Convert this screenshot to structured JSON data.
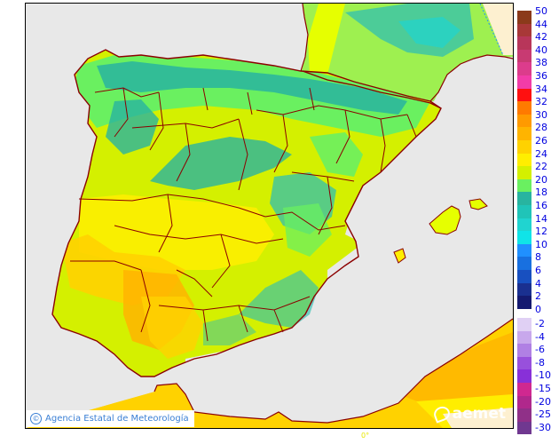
{
  "map": {
    "region": "Iberian Peninsula and Balearic Islands",
    "background_sea_color": "#e8e8e8",
    "border_color": "#8b0000",
    "credit": "Agencia Estatal de Meteorología",
    "credit_symbol": "©",
    "logo_text": "aemet",
    "longitude_label": "0°"
  },
  "legend": {
    "positive": [
      {
        "label": "50",
        "color": "#8b3a1a"
      },
      {
        "label": "44",
        "color": "#a83838"
      },
      {
        "label": "42",
        "color": "#b8365a"
      },
      {
        "label": "40",
        "color": "#c83a72"
      },
      {
        "label": "38",
        "color": "#dc3c8c"
      },
      {
        "label": "36",
        "color": "#f23ca8"
      },
      {
        "label": "34",
        "color": "#ff1010"
      },
      {
        "label": "32",
        "color": "#ff7a00"
      },
      {
        "label": "30",
        "color": "#ff9a00"
      },
      {
        "label": "28",
        "color": "#ffb400"
      },
      {
        "label": "26",
        "color": "#ffd200"
      },
      {
        "label": "24",
        "color": "#ffee00"
      },
      {
        "label": "22",
        "color": "#d4f000"
      },
      {
        "label": "20",
        "color": "#6af060"
      },
      {
        "label": "18",
        "color": "#28b4a0"
      },
      {
        "label": "16",
        "color": "#20c4b8"
      },
      {
        "label": "14",
        "color": "#20d4d0"
      },
      {
        "label": "12",
        "color": "#10e4e8"
      },
      {
        "label": "10",
        "color": "#2090ff"
      },
      {
        "label": "8",
        "color": "#1870e0"
      },
      {
        "label": "6",
        "color": "#1850c0"
      },
      {
        "label": "4",
        "color": "#1a3090"
      },
      {
        "label": "2",
        "color": "#141a70"
      },
      {
        "label": "0",
        "color": ""
      }
    ],
    "negative": [
      {
        "label": "-2",
        "color": "#e0d0f4"
      },
      {
        "label": "-4",
        "color": "#c8a8ec"
      },
      {
        "label": "-6",
        "color": "#b080e4"
      },
      {
        "label": "-8",
        "color": "#9850dc"
      },
      {
        "label": "-10",
        "color": "#8830d8"
      },
      {
        "label": "-15",
        "color": "#d02890"
      },
      {
        "label": "-20",
        "color": "#b0288c"
      },
      {
        "label": "-25",
        "color": "#903088"
      },
      {
        "label": "-30",
        "color": "#703890"
      }
    ]
  }
}
